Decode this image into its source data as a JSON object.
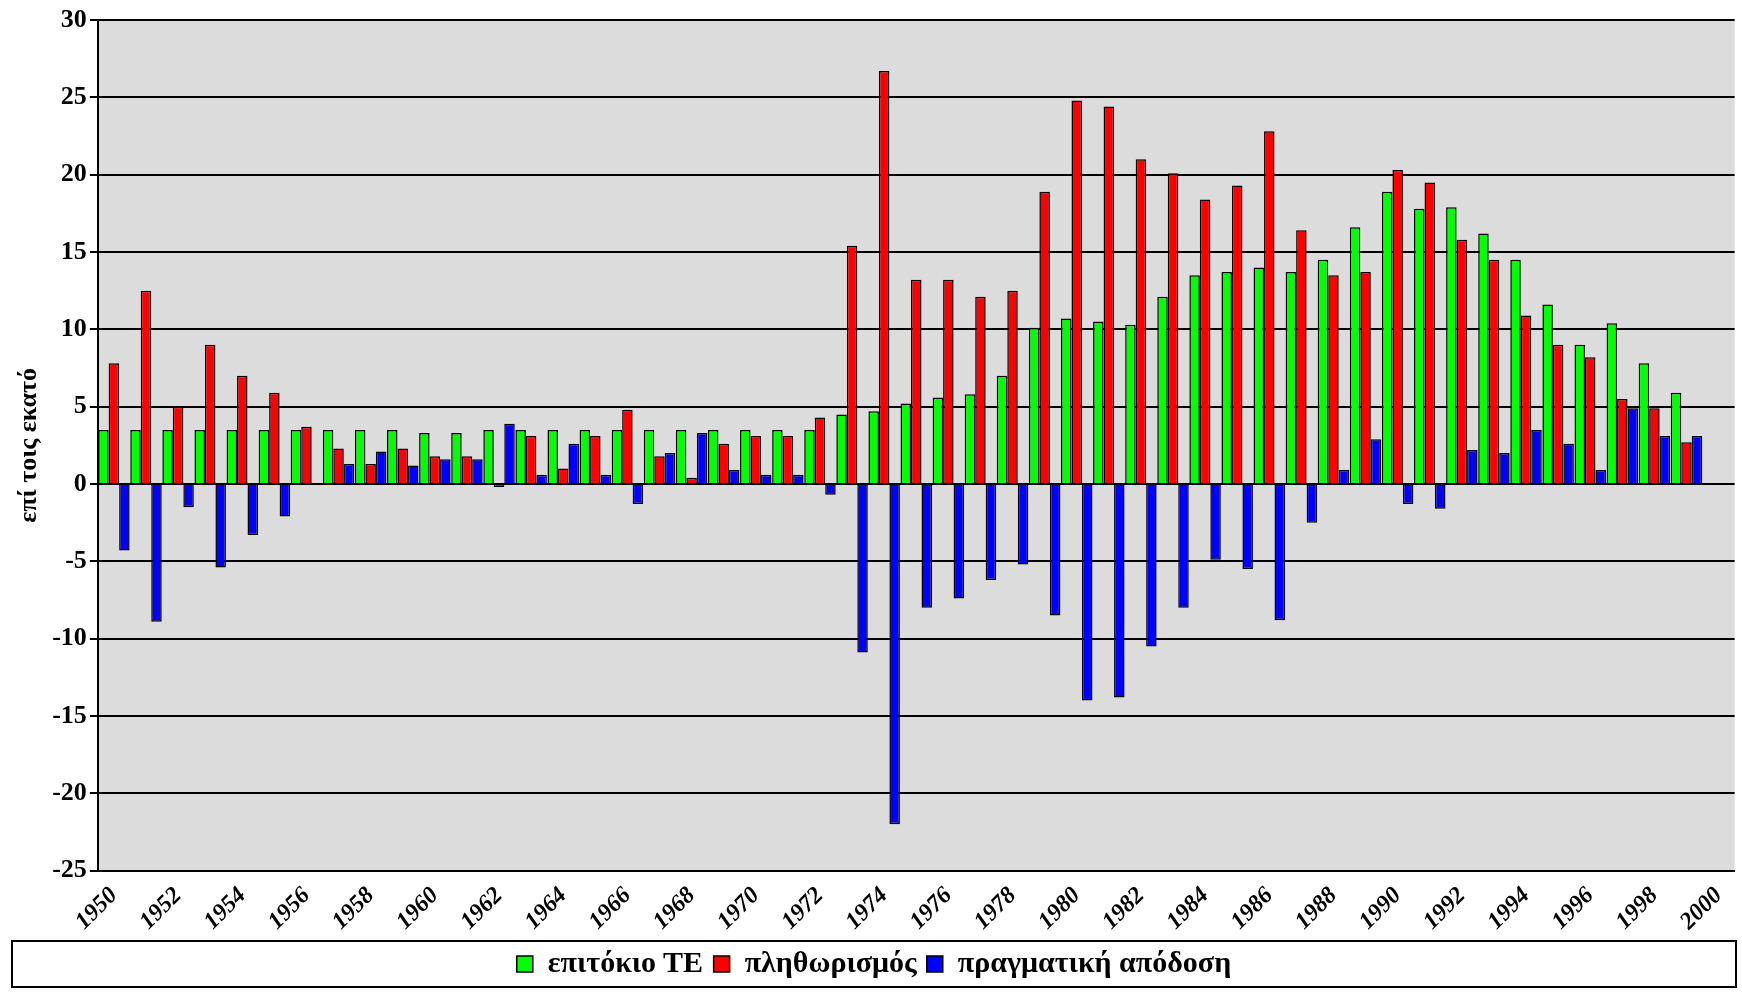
{
  "chart_data": {
    "type": "bar",
    "ylabel": "επί τοις εκατό",
    "categories": [
      "1950",
      null,
      "1952",
      null,
      "1954",
      null,
      "1956",
      null,
      "1958",
      null,
      "1960",
      null,
      "1962",
      null,
      "1964",
      null,
      "1966",
      null,
      "1968",
      null,
      "1970",
      null,
      "1972",
      null,
      "1974",
      null,
      "1976",
      null,
      "1978",
      null,
      "1980",
      null,
      "1982",
      null,
      "1984",
      null,
      "1986",
      null,
      "1988",
      null,
      "1990",
      null,
      "1992",
      null,
      "1994",
      null,
      "1996",
      null,
      "1998",
      null,
      "2000"
    ],
    "series": [
      {
        "name": "επιτόκιο ΤΕ",
        "color": "#00ff00",
        "values": [
          3.5,
          3.5,
          3.5,
          3.5,
          3.5,
          3.5,
          3.5,
          3.5,
          3.5,
          3.5,
          3.3,
          3.3,
          3.5,
          3.5,
          3.5,
          3.5,
          3.5,
          3.5,
          3.5,
          3.5,
          3.5,
          3.5,
          3.5,
          4.5,
          4.7,
          5.2,
          5.6,
          5.8,
          7.0,
          10.1,
          10.7,
          10.5,
          10.3,
          12.1,
          13.5,
          13.7,
          14.0,
          13.7,
          14.5,
          16.6,
          18.9,
          17.8,
          17.9,
          16.2,
          14.5,
          11.6,
          9.0,
          10.4,
          7.8,
          5.9,
          null
        ]
      },
      {
        "name": "πληθωρισμός",
        "color": "#ff0000",
        "values": [
          7.8,
          12.5,
          5.0,
          9.0,
          7.0,
          5.9,
          3.7,
          2.3,
          1.3,
          2.3,
          1.8,
          1.8,
          -0.2,
          3.1,
          1.0,
          3.1,
          4.8,
          1.8,
          0.4,
          2.6,
          3.1,
          3.1,
          4.3,
          15.4,
          26.7,
          13.2,
          13.2,
          12.1,
          12.5,
          18.9,
          24.8,
          24.4,
          21.0,
          20.1,
          18.4,
          19.3,
          22.8,
          16.4,
          13.5,
          13.7,
          20.3,
          19.5,
          15.8,
          14.5,
          10.9,
          9.0,
          8.2,
          5.5,
          4.9,
          2.7,
          null
        ]
      },
      {
        "name": "πραγματική απόδοση",
        "color": "#0000ff",
        "values": [
          -4.3,
          -8.9,
          -1.5,
          -5.4,
          -3.3,
          -2.1,
          0,
          1.3,
          2.1,
          1.2,
          1.6,
          1.6,
          3.9,
          0.6,
          2.6,
          0.6,
          -1.3,
          2.0,
          3.3,
          0.9,
          0.6,
          0.6,
          -0.7,
          -10.9,
          -22.0,
          -8.0,
          -7.4,
          -6.2,
          -5.2,
          -8.5,
          -14.0,
          -13.8,
          -10.5,
          -8.0,
          -4.9,
          -5.5,
          -8.8,
          -2.5,
          0.9,
          2.9,
          -1.3,
          -1.6,
          2.2,
          2.0,
          3.5,
          2.6,
          0.9,
          4.9,
          3.1,
          3.1,
          null
        ]
      }
    ],
    "ylim": [
      -25,
      30
    ],
    "yticks": [
      -25,
      -20,
      -15,
      -10,
      -5,
      0,
      5,
      10,
      15,
      20,
      25,
      30
    ],
    "grid": "y",
    "legend": "bottom"
  }
}
